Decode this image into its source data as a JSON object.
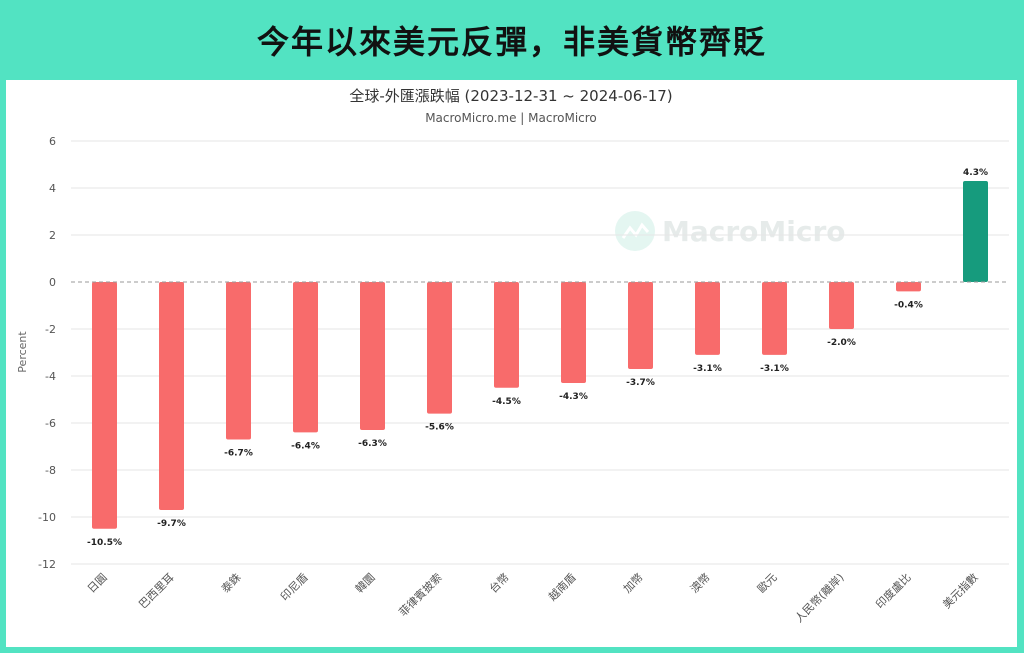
{
  "banner": {
    "title": "今年以來美元反彈，非美貨幣齊貶"
  },
  "colors": {
    "negative": "#f86b6b",
    "positive": "#169b7d",
    "frame": "#52e3c2"
  },
  "watermark": {
    "text": "MacroMicro"
  },
  "chart_data": {
    "type": "bar",
    "title": "全球-外匯漲跌幅 (2023-12-31 ~ 2024-06-17)",
    "subtitle": "MacroMicro.me | MacroMicro",
    "ylabel": "Percent",
    "ylim": [
      -12,
      6
    ],
    "yticks": [
      6,
      4,
      2,
      0,
      -2,
      -4,
      -6,
      -8,
      -10,
      -12
    ],
    "grid": true,
    "legend": "none",
    "categories": [
      "日圓",
      "巴西里耳",
      "泰銖",
      "印尼盾",
      "韓圜",
      "菲律賓披索",
      "台幣",
      "越南盾",
      "加幣",
      "澳幣",
      "歐元",
      "人民幣(離岸)",
      "印度盧比",
      "美元指數"
    ],
    "values": [
      -10.5,
      -9.7,
      -6.7,
      -6.4,
      -6.3,
      -5.6,
      -4.5,
      -4.3,
      -3.7,
      -3.1,
      -3.1,
      -2.0,
      -0.4,
      4.3
    ],
    "value_labels": [
      "-10.5%",
      "-9.7%",
      "-6.7%",
      "-6.4%",
      "-6.3%",
      "-5.6%",
      "-4.5%",
      "-4.3%",
      "-3.7%",
      "-3.1%",
      "-3.1%",
      "-2.0%",
      "-0.4%",
      "4.3%"
    ]
  }
}
